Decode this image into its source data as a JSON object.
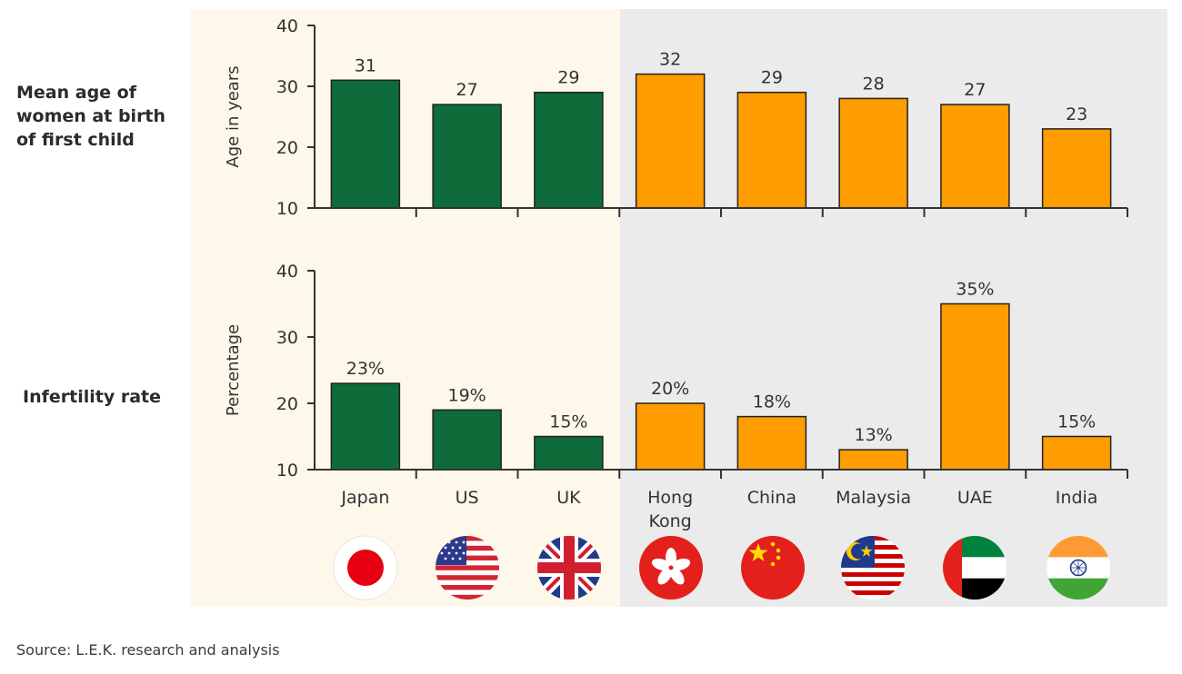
{
  "row_labels": {
    "age": "Mean age of\nwomen at birth\nof first child",
    "infertility": "Infertility rate"
  },
  "source": "Source: L.E.K. research and analysis",
  "colors": {
    "developed_bar": "#0e6b3a",
    "emerging_bar": "#ff9c00",
    "developed_bg": "#fdf8ea",
    "emerging_bg": "#ebebeb",
    "axis": "#333333"
  },
  "flags": [
    "japan-flag-icon",
    "us-flag-icon",
    "uk-flag-icon",
    "hong-kong-flag-icon",
    "china-flag-icon",
    "malaysia-flag-icon",
    "uae-flag-icon",
    "india-flag-icon"
  ],
  "chart_data": [
    {
      "type": "bar",
      "categories": [
        "Japan",
        "US",
        "UK",
        "Hong\nKong",
        "China",
        "Malaysia",
        "UAE",
        "India"
      ],
      "values": [
        31,
        27,
        29,
        32,
        29,
        28,
        27,
        23
      ],
      "data_labels": [
        "31",
        "27",
        "29",
        "32",
        "29",
        "28",
        "27",
        "23"
      ],
      "ylabel": "Age in years",
      "ylim": [
        10,
        40
      ],
      "yticks": [
        "10",
        "20",
        "30",
        "40"
      ],
      "groups": [
        "developed",
        "developed",
        "developed",
        "emerging",
        "emerging",
        "emerging",
        "emerging",
        "emerging"
      ]
    },
    {
      "type": "bar",
      "categories": [
        "Japan",
        "US",
        "UK",
        "Hong\nKong",
        "China",
        "Malaysia",
        "UAE",
        "India"
      ],
      "values": [
        23,
        19,
        15,
        20,
        18,
        13,
        35,
        15
      ],
      "data_labels": [
        "23%",
        "19%",
        "15%",
        "20%",
        "18%",
        "13%",
        "35%",
        "15%"
      ],
      "ylabel": "Percentage",
      "ylim": [
        10,
        40
      ],
      "yticks": [
        "10",
        "20",
        "30",
        "40"
      ],
      "groups": [
        "developed",
        "developed",
        "developed",
        "emerging",
        "emerging",
        "emerging",
        "emerging",
        "emerging"
      ]
    }
  ]
}
